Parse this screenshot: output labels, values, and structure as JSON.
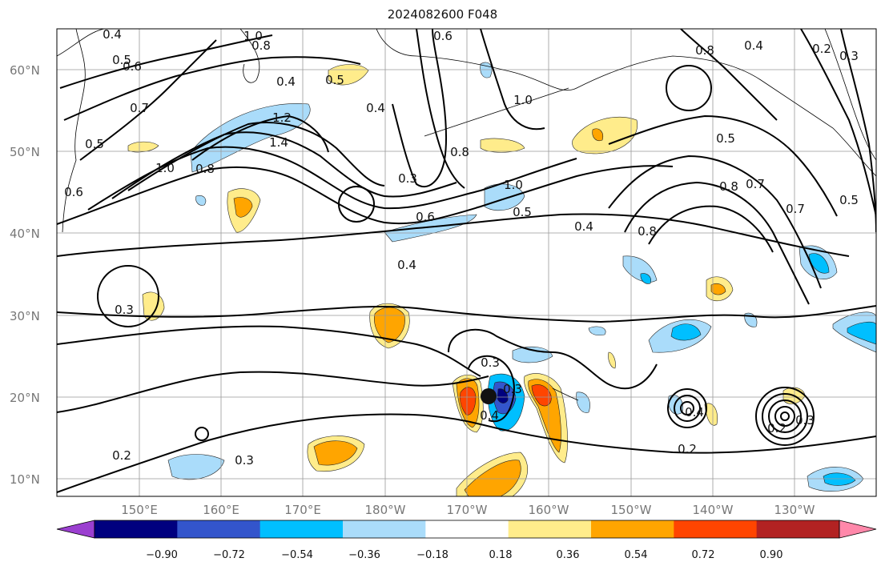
{
  "title": "2024082600 F048",
  "lat_labels": [
    "60°N",
    "50°N",
    "40°N",
    "30°N",
    "20°N",
    "10°N"
  ],
  "lon_labels": [
    "150°E",
    "160°E",
    "170°E",
    "180°W",
    "170°W",
    "160°W",
    "150°W",
    "140°W",
    "130°W"
  ],
  "colorbar": {
    "tick_labels": [
      "−0.90",
      "−0.72",
      "−0.54",
      "−0.36",
      "−0.18",
      "0.18",
      "0.36",
      "0.54",
      "0.72",
      "0.90"
    ],
    "colors": [
      "#9b3fd0",
      "#00007f",
      "#3355cc",
      "#00bfff",
      "#aadcfa",
      "#ffffff",
      "#ffec8b",
      "#ffa500",
      "#ff4500",
      "#b22222",
      "#ff88aa"
    ]
  },
  "contour_labels": [
    {
      "text": "1.0"
    },
    {
      "text": "0.8"
    },
    {
      "text": "0.4"
    },
    {
      "text": "0.5"
    },
    {
      "text": "0.6"
    },
    {
      "text": "0.5"
    },
    {
      "text": "0.4"
    },
    {
      "text": "0.7"
    },
    {
      "text": "0.5"
    },
    {
      "text": "1.2"
    },
    {
      "text": "1.4"
    },
    {
      "text": "0.8"
    },
    {
      "text": "1.0"
    },
    {
      "text": "0.6"
    },
    {
      "text": "0.4"
    },
    {
      "text": "0.3"
    },
    {
      "text": "0.8"
    },
    {
      "text": "1.0"
    },
    {
      "text": "0.6"
    },
    {
      "text": "1.0"
    },
    {
      "text": "0.5"
    },
    {
      "text": "0.6"
    },
    {
      "text": "0.4"
    },
    {
      "text": "0.4"
    },
    {
      "text": "0.3"
    },
    {
      "text": "0.3"
    },
    {
      "text": "0.4"
    },
    {
      "text": "0.2"
    },
    {
      "text": "0.3"
    },
    {
      "text": "0.3"
    },
    {
      "text": "0.5"
    },
    {
      "text": "0.8"
    },
    {
      "text": "0.8"
    },
    {
      "text": "0.7"
    },
    {
      "text": "0.7"
    },
    {
      "text": "0.5"
    },
    {
      "text": "0.8"
    },
    {
      "text": "0.4"
    },
    {
      "text": "0.2"
    },
    {
      "text": "0.4"
    },
    {
      "text": "0.2"
    },
    {
      "text": "0.2"
    },
    {
      "text": "0.3"
    },
    {
      "text": "0.3"
    }
  ]
}
